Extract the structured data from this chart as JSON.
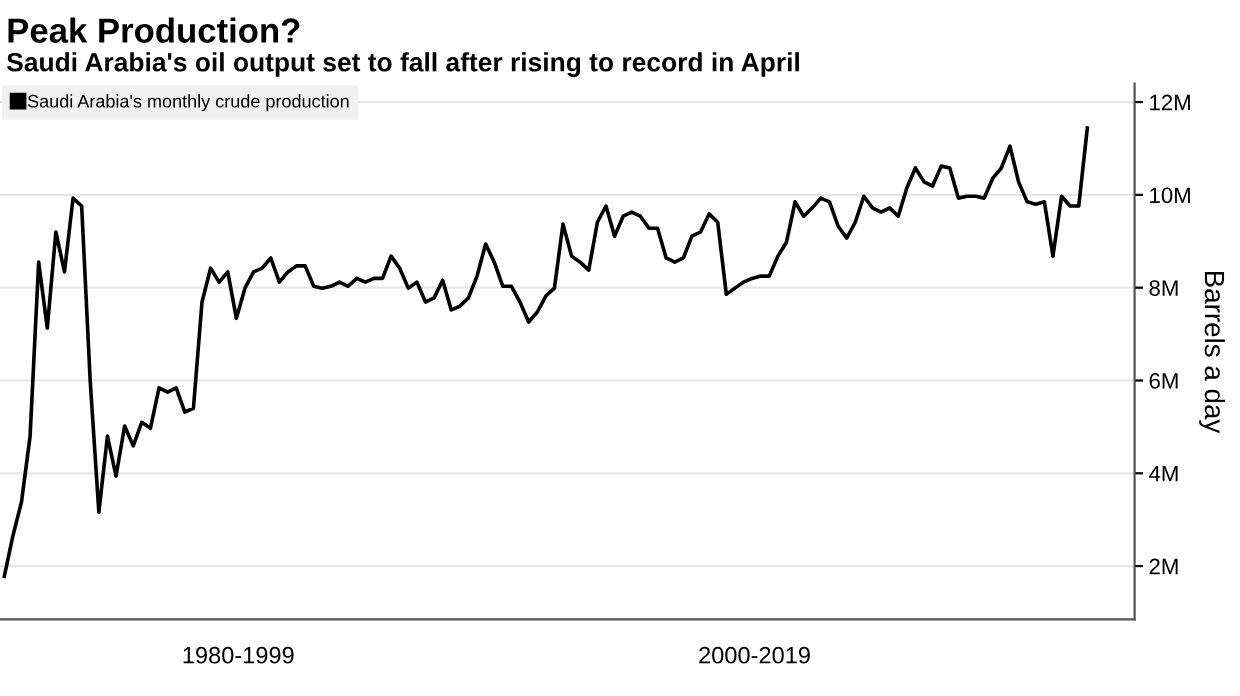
{
  "chart_data": {
    "type": "line",
    "title": "Peak Production?",
    "subtitle": "Saudi Arabia's oil output set to fall after rising to record in April",
    "ylabel": "Barrels a day",
    "annotations": [
      "1980-1999",
      "2000-2019"
    ],
    "categories": [
      null,
      null,
      null,
      null,
      null,
      null,
      null,
      null,
      null,
      null,
      null,
      null,
      null,
      null,
      null,
      null,
      null,
      null,
      null,
      null,
      null,
      null,
      null,
      null,
      null,
      null,
      null,
      null,
      null,
      null,
      null,
      null,
      null,
      null,
      null,
      null,
      null,
      null,
      null,
      null,
      null,
      null,
      null,
      null,
      null,
      null,
      null,
      null,
      null,
      null,
      null,
      null,
      null,
      null,
      null,
      null,
      null,
      null,
      null,
      null,
      null,
      null,
      null,
      null,
      null,
      null,
      null,
      null,
      null,
      null,
      null,
      null,
      null,
      null,
      null,
      null,
      null,
      null,
      null,
      null,
      null,
      null,
      null,
      null,
      null,
      null,
      null,
      null,
      null,
      null,
      null,
      null,
      null,
      null,
      null,
      null,
      null,
      null,
      null,
      null,
      null,
      null,
      null,
      null,
      null,
      null,
      null,
      null,
      null,
      null,
      null,
      null,
      null,
      null,
      null,
      null,
      null,
      null,
      null,
      null,
      null,
      null,
      null,
      null,
      null,
      null,
      null
    ],
    "series": [
      {
        "name": "Saudi Arabia's monthly crude production",
        "color": "#000000",
        "values": [
          1.78,
          2.65,
          3.38,
          4.8,
          8.55,
          7.13,
          9.2,
          8.34,
          9.93,
          9.76,
          5.97,
          3.16,
          4.8,
          3.94,
          5.02,
          4.59,
          5.1,
          4.97,
          5.84,
          5.75,
          5.84,
          5.32,
          5.4,
          7.69,
          8.42,
          8.12,
          8.34,
          7.34,
          7.99,
          8.34,
          8.42,
          8.64,
          8.12,
          8.34,
          8.47,
          8.47,
          8.03,
          7.99,
          8.03,
          8.12,
          8.03,
          8.2,
          8.12,
          8.2,
          8.2,
          8.68,
          8.42,
          7.99,
          8.12,
          7.69,
          7.78,
          8.16,
          7.52,
          7.6,
          7.78,
          8.25,
          8.94,
          8.55,
          8.03,
          8.03,
          7.69,
          7.26,
          7.47,
          7.82,
          7.99,
          9.37,
          8.68,
          8.55,
          8.38,
          9.41,
          9.76,
          9.11,
          9.54,
          9.63,
          9.54,
          9.28,
          9.28,
          8.64,
          8.55,
          8.64,
          9.11,
          9.2,
          9.59,
          9.41,
          7.86,
          7.99,
          8.12,
          8.2,
          8.25,
          8.25,
          8.68,
          8.98,
          9.85,
          9.54,
          9.72,
          9.93,
          9.85,
          9.33,
          9.07,
          9.41,
          9.97,
          9.72,
          9.63,
          9.72,
          9.54,
          10.15,
          10.58,
          10.28,
          10.19,
          10.62,
          10.58,
          9.93,
          9.97,
          9.97,
          9.93,
          10.36,
          10.58,
          11.05,
          10.28,
          9.85,
          9.8,
          9.85,
          8.68,
          9.97,
          9.76,
          9.76,
          11.44
        ]
      }
    ],
    "ylim": [
      0.85,
      12.4
    ],
    "yticks": [
      {
        "value": 2,
        "label": "2M"
      },
      {
        "value": 4,
        "label": "4M"
      },
      {
        "value": 6,
        "label": "6M"
      },
      {
        "value": 8,
        "label": "8M"
      },
      {
        "value": 10,
        "label": "10M"
      },
      {
        "value": 12,
        "label": "12M"
      }
    ],
    "grid": "y",
    "legend": "top left"
  }
}
